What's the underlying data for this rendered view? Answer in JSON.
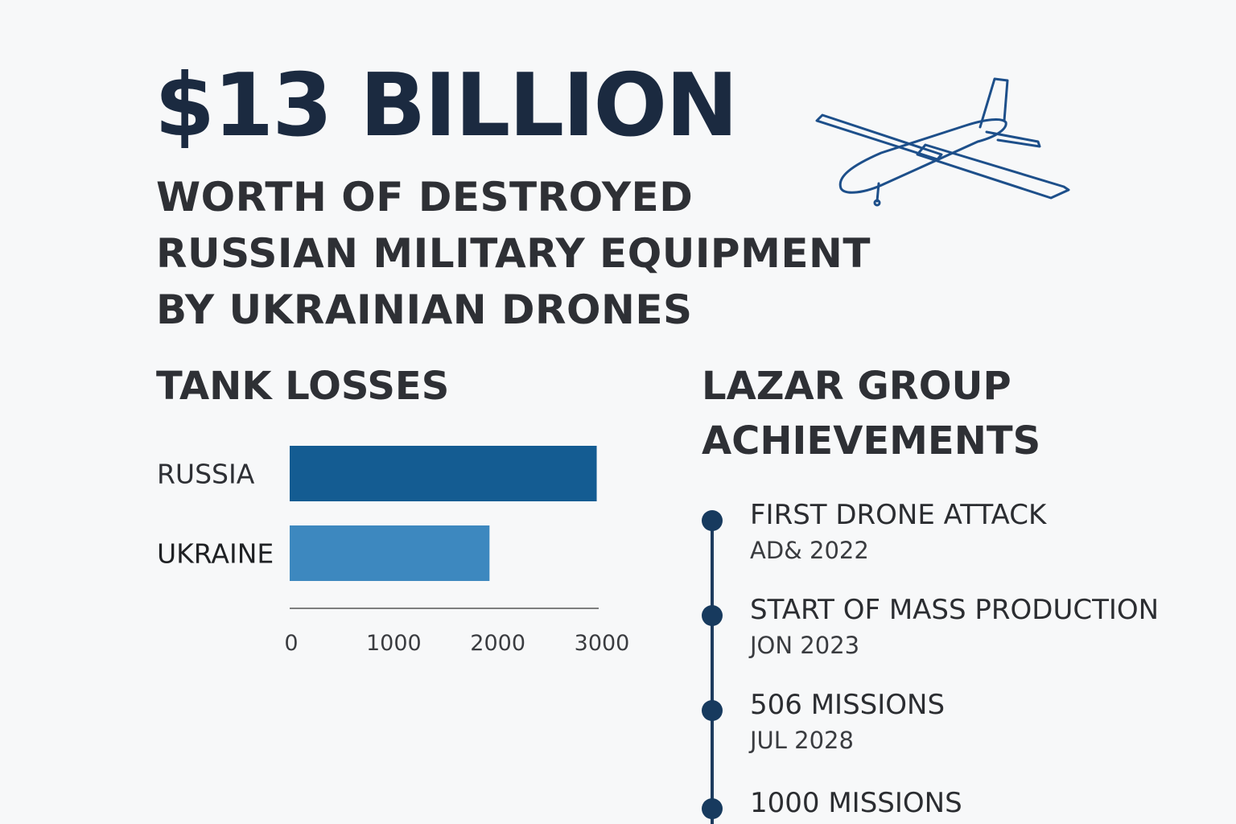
{
  "headline": "$13 BILLION",
  "subtitle_lines": [
    "WORTH OF DESTROYED",
    "RUSSIAN MILITARY EQUIPMENT",
    "BY UKRAINIAN DRONES"
  ],
  "drone_icon": "drone-aircraft-outline-icon",
  "colors": {
    "headline": "#1b2a40",
    "russia_bar": "#145c92",
    "ukraine_bar": "#3d88bf",
    "timeline": "#173a5e"
  },
  "chart_data": {
    "type": "bar",
    "orientation": "horizontal",
    "title": "TANK LOSSES",
    "categories": [
      "RUSSIA",
      "UKRAINE"
    ],
    "values": [
      2950,
      1920
    ],
    "xlim": [
      0,
      3000
    ],
    "xticks": [
      0,
      1000,
      2000,
      3000
    ],
    "xtick_labels": [
      "0",
      "1000",
      "2000",
      "3000"
    ],
    "xlabel": "",
    "ylabel": "",
    "grid": false
  },
  "achievements": {
    "title_lines": [
      "LAZAR GROUP",
      "ACHIEVEMENTS"
    ],
    "items": [
      {
        "title": "FIRST DRONE ATTACK",
        "date": "AD& 2022"
      },
      {
        "title": "START OF MASS PRODUCTION",
        "date": "JON 2023"
      },
      {
        "title": "506 MISSIONS",
        "date": "JUL 2028"
      },
      {
        "title": "1000 MISSIONS",
        "date": ""
      }
    ]
  }
}
